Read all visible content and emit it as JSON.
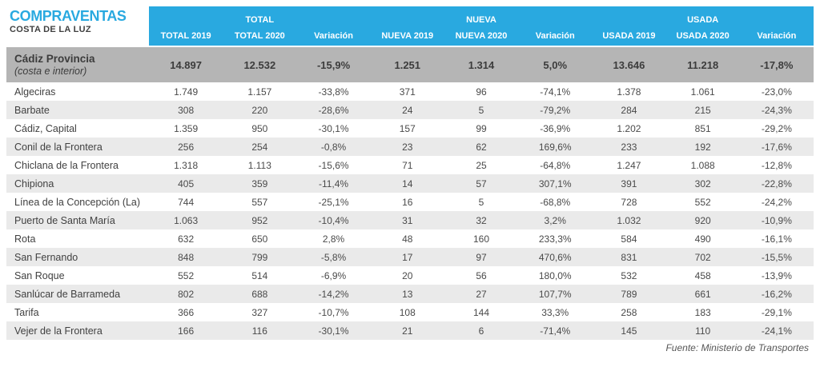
{
  "title": {
    "main": "COMPRAVENTAS",
    "sub": "COSTA DE LA LUZ"
  },
  "footer": {
    "source": "Fuente: Ministerio de Transportes"
  },
  "colors": {
    "header_blue": "#29a9e0",
    "summary_gray": "#b5b5b5",
    "stripe_gray": "#eaeaea",
    "text_dark": "#4a4a4a",
    "title_blue": "#29a9e0"
  },
  "chart_data": {
    "type": "table",
    "title": "COMPRAVENTAS COSTA DE LA LUZ",
    "column_groups": [
      {
        "label": "TOTAL",
        "span": 3
      },
      {
        "label": "NUEVA",
        "span": 3
      },
      {
        "label": "USADA",
        "span": 3
      }
    ],
    "columns": [
      "TOTAL 2019",
      "TOTAL 2020",
      "Variación",
      "NUEVA 2019",
      "NUEVA 2020",
      "Variación",
      "USADA 2019",
      "USADA 2020",
      "Variación"
    ],
    "summary_row": {
      "label": "Cádiz Provincia",
      "sublabel": "(costa e interior)",
      "values": [
        "14.897",
        "12.532",
        "-15,9%",
        "1.251",
        "1.314",
        "5,0%",
        "13.646",
        "11.218",
        "-17,8%"
      ]
    },
    "rows": [
      {
        "label": "Algeciras",
        "values": [
          "1.749",
          "1.157",
          "-33,8%",
          "371",
          "96",
          "-74,1%",
          "1.378",
          "1.061",
          "-23,0%"
        ]
      },
      {
        "label": "Barbate",
        "values": [
          "308",
          "220",
          "-28,6%",
          "24",
          "5",
          "-79,2%",
          "284",
          "215",
          "-24,3%"
        ]
      },
      {
        "label": "Cádiz, Capital",
        "values": [
          "1.359",
          "950",
          "-30,1%",
          "157",
          "99",
          "-36,9%",
          "1.202",
          "851",
          "-29,2%"
        ]
      },
      {
        "label": "Conil de la Frontera",
        "values": [
          "256",
          "254",
          "-0,8%",
          "23",
          "62",
          "169,6%",
          "233",
          "192",
          "-17,6%"
        ]
      },
      {
        "label": "Chiclana de la Frontera",
        "values": [
          "1.318",
          "1.113",
          "-15,6%",
          "71",
          "25",
          "-64,8%",
          "1.247",
          "1.088",
          "-12,8%"
        ]
      },
      {
        "label": "Chipiona",
        "values": [
          "405",
          "359",
          "-11,4%",
          "14",
          "57",
          "307,1%",
          "391",
          "302",
          "-22,8%"
        ]
      },
      {
        "label": "Línea de la Concepción (La)",
        "values": [
          "744",
          "557",
          "-25,1%",
          "16",
          "5",
          "-68,8%",
          "728",
          "552",
          "-24,2%"
        ]
      },
      {
        "label": "Puerto de Santa María",
        "values": [
          "1.063",
          "952",
          "-10,4%",
          "31",
          "32",
          "3,2%",
          "1.032",
          "920",
          "-10,9%"
        ]
      },
      {
        "label": "Rota",
        "values": [
          "632",
          "650",
          "2,8%",
          "48",
          "160",
          "233,3%",
          "584",
          "490",
          "-16,1%"
        ]
      },
      {
        "label": "San Fernando",
        "values": [
          "848",
          "799",
          "-5,8%",
          "17",
          "97",
          "470,6%",
          "831",
          "702",
          "-15,5%"
        ]
      },
      {
        "label": "San Roque",
        "values": [
          "552",
          "514",
          "-6,9%",
          "20",
          "56",
          "180,0%",
          "532",
          "458",
          "-13,9%"
        ]
      },
      {
        "label": "Sanlúcar de Barrameda",
        "values": [
          "802",
          "688",
          "-14,2%",
          "13",
          "27",
          "107,7%",
          "789",
          "661",
          "-16,2%"
        ]
      },
      {
        "label": "Tarifa",
        "values": [
          "366",
          "327",
          "-10,7%",
          "108",
          "144",
          "33,3%",
          "258",
          "183",
          "-29,1%"
        ]
      },
      {
        "label": "Vejer de la Frontera",
        "values": [
          "166",
          "116",
          "-30,1%",
          "21",
          "6",
          "-71,4%",
          "145",
          "110",
          "-24,1%"
        ]
      }
    ],
    "source": "Fuente: Ministerio de Transportes"
  }
}
